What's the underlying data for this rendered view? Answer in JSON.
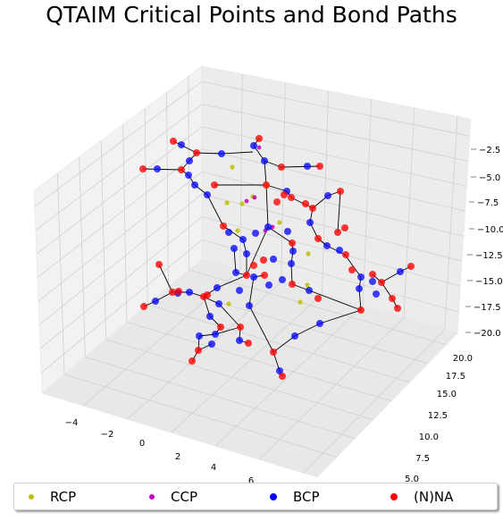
{
  "chart_data": {
    "type": "scatter",
    "projection": "3d",
    "title": "QTAIM Critical Points and Bond Paths",
    "xlabel": "",
    "ylabel": "",
    "zlabel": "",
    "x_ticks": [
      "−4",
      "−2",
      "0",
      "2",
      "4",
      "6"
    ],
    "y_ticks": [
      "5.0",
      "7.5",
      "10.0",
      "12.5",
      "15.0",
      "17.5",
      "20.0"
    ],
    "z_ticks": [
      "−2.5",
      "−5.0",
      "−7.5",
      "−10.0",
      "−12.5",
      "−15.0",
      "−17.5",
      "−20.0"
    ],
    "legend_position": "bottom",
    "grid": true,
    "colors": {
      "RCP": "#bfbf00",
      "CCP": "#bf00bf",
      "BCP": "#0000ff",
      "NNA": "#ff0000",
      "bond": "#000000"
    },
    "series": [
      {
        "name": "RCP"
      },
      {
        "name": "CCP"
      },
      {
        "name": "BCP"
      },
      {
        "name": "(N)NA"
      }
    ]
  }
}
